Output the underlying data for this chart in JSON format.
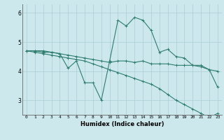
{
  "xlabel": "Humidex (Indice chaleur)",
  "x": [
    0,
    1,
    2,
    3,
    4,
    5,
    6,
    7,
    8,
    9,
    10,
    11,
    12,
    13,
    14,
    15,
    16,
    17,
    18,
    19,
    20,
    21,
    22,
    23
  ],
  "line1": [
    4.7,
    4.7,
    4.7,
    4.65,
    4.6,
    4.1,
    4.35,
    3.6,
    3.6,
    3.0,
    4.35,
    5.75,
    5.55,
    5.85,
    5.75,
    5.4,
    4.65,
    4.75,
    4.5,
    4.45,
    4.2,
    4.2,
    4.05,
    3.45
  ],
  "line2": [
    4.7,
    4.7,
    4.65,
    4.65,
    4.6,
    4.55,
    4.5,
    4.45,
    4.4,
    4.35,
    4.3,
    4.35,
    4.35,
    4.3,
    4.35,
    4.25,
    4.25,
    4.25,
    4.2,
    4.2,
    4.2,
    4.15,
    4.05,
    4.0
  ],
  "line3": [
    4.7,
    4.65,
    4.6,
    4.55,
    4.5,
    4.45,
    4.4,
    4.35,
    4.25,
    4.15,
    4.05,
    3.95,
    3.85,
    3.75,
    3.65,
    3.55,
    3.4,
    3.2,
    3.0,
    2.85,
    2.7,
    2.55,
    2.4,
    2.55
  ],
  "color": "#2e7d6e",
  "bg_color": "#cce8ed",
  "grid_color": "#aacdd4",
  "ylim": [
    2.5,
    6.3
  ],
  "yticks": [
    3,
    4,
    5,
    6
  ],
  "xticks": [
    0,
    1,
    2,
    3,
    4,
    5,
    6,
    7,
    8,
    9,
    10,
    11,
    12,
    13,
    14,
    15,
    16,
    17,
    18,
    19,
    20,
    21,
    22,
    23
  ]
}
